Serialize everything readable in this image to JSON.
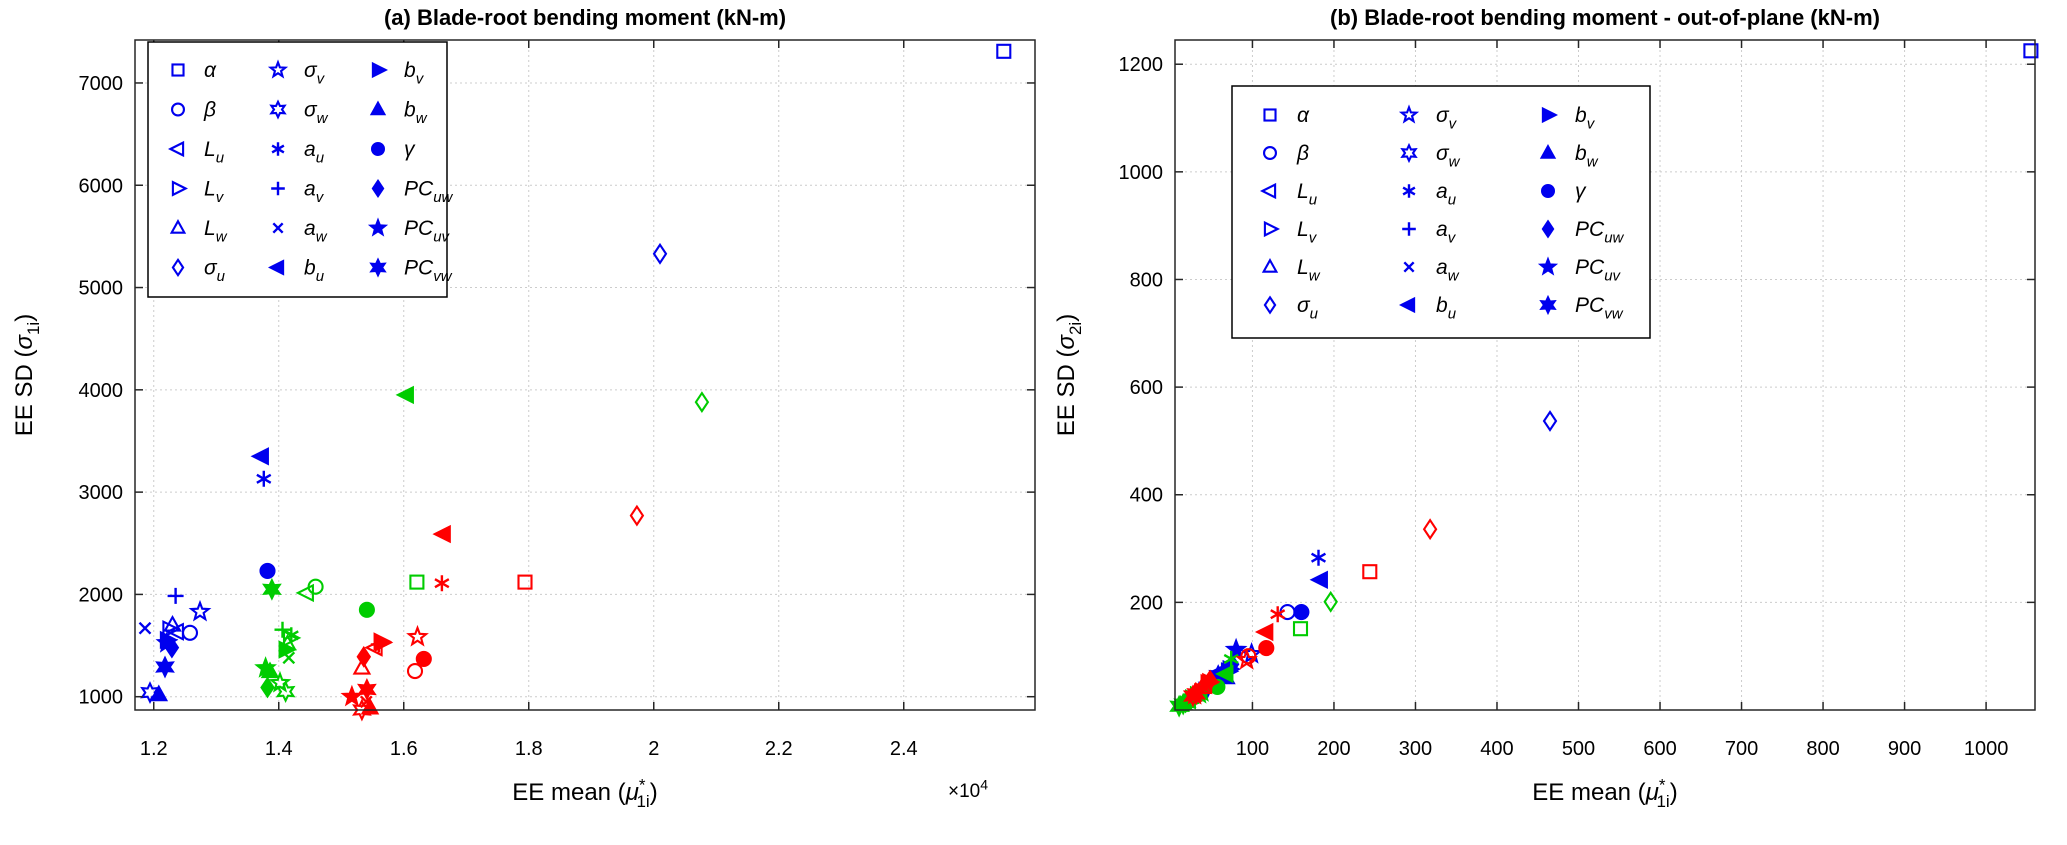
{
  "figure": {
    "background": "#ffffff"
  },
  "colors": {
    "series_blue": "#0000ee",
    "series_green": "#00cc00",
    "series_red": "#ff0000",
    "grid": "#cccccc",
    "axis": "#262626",
    "text": "#000000",
    "legend_border": "#000000",
    "legend_bg": "#ffffff"
  },
  "legend_entries": [
    {
      "id": "alpha",
      "base": "α",
      "sub": "",
      "marker": "square",
      "filled": false
    },
    {
      "id": "beta",
      "base": "β",
      "sub": "",
      "marker": "circle",
      "filled": false
    },
    {
      "id": "Lu",
      "base": "L",
      "sub": "u",
      "marker": "tri-left",
      "filled": false
    },
    {
      "id": "Lv",
      "base": "L",
      "sub": "v",
      "marker": "tri-right",
      "filled": false
    },
    {
      "id": "Lw",
      "base": "L",
      "sub": "w",
      "marker": "tri-up",
      "filled": false
    },
    {
      "id": "sigma_u",
      "base": "σ",
      "sub": "u",
      "marker": "diamond",
      "filled": false
    },
    {
      "id": "sigma_v",
      "base": "σ",
      "sub": "v",
      "marker": "star5",
      "filled": false
    },
    {
      "id": "sigma_w",
      "base": "σ",
      "sub": "w",
      "marker": "star6",
      "filled": false
    },
    {
      "id": "a_u",
      "base": "a",
      "sub": "u",
      "marker": "asterisk",
      "filled": false
    },
    {
      "id": "a_v",
      "base": "a",
      "sub": "v",
      "marker": "plus",
      "filled": false
    },
    {
      "id": "a_w",
      "base": "a",
      "sub": "w",
      "marker": "x",
      "filled": false
    },
    {
      "id": "b_u",
      "base": "b",
      "sub": "u",
      "marker": "tri-left",
      "filled": true
    },
    {
      "id": "b_v",
      "base": "b",
      "sub": "v",
      "marker": "tri-right",
      "filled": true
    },
    {
      "id": "b_w",
      "base": "b",
      "sub": "w",
      "marker": "tri-up",
      "filled": true
    },
    {
      "id": "gamma",
      "base": "γ",
      "sub": "",
      "marker": "circle",
      "filled": true
    },
    {
      "id": "PC_uw",
      "base": "PC",
      "sub": "uw",
      "marker": "diamond",
      "filled": true
    },
    {
      "id": "PC_uv",
      "base": "PC",
      "sub": "uv",
      "marker": "star5",
      "filled": true
    },
    {
      "id": "PC_vw",
      "base": "PC",
      "sub": "vw",
      "marker": "star6",
      "filled": true
    }
  ],
  "chart_data": [
    {
      "type": "scatter",
      "panel": "a",
      "title": "(a)  Blade-root bending moment (kN-m)",
      "xlabel_parts": [
        {
          "t": "EE mean ("
        },
        {
          "t": "μ",
          "i": 1
        },
        {
          "t": "*",
          "sup": 1
        },
        {
          "t": "1i",
          "sub": 1,
          "dx": -9
        },
        {
          "t": ")"
        }
      ],
      "ylabel_parts": [
        {
          "t": "EE SD ("
        },
        {
          "t": "σ",
          "i": 1
        },
        {
          "t": "1i",
          "sub": 1
        },
        {
          "t": ")"
        }
      ],
      "x_multiplier_parts": [
        {
          "t": "×10"
        },
        {
          "t": "4",
          "sup": 1
        }
      ],
      "xlim": [
        1.17,
        2.61
      ],
      "ylim": [
        870,
        7420
      ],
      "xticks": [
        1.2,
        1.4,
        1.6,
        1.8,
        2.0,
        2.2,
        2.4
      ],
      "xtick_labels": [
        "1.2",
        "1.4",
        "1.6",
        "1.8",
        "2",
        "2.2",
        "2.4"
      ],
      "yticks": [
        1000,
        2000,
        3000,
        4000,
        5000,
        6000,
        7000
      ],
      "ytick_labels": [
        "1000",
        "2000",
        "3000",
        "4000",
        "5000",
        "6000",
        "7000"
      ],
      "grid": true,
      "legend_position": "northwest",
      "series": [
        {
          "name": "blue",
          "color_key": "series_blue",
          "points": [
            [
              2.56,
              7310
            ],
            [
              1.258,
              1625
            ],
            [
              1.237,
              1635
            ],
            [
              1.225,
              1660
            ],
            [
              1.23,
              1700
            ],
            [
              2.01,
              5330
            ],
            [
              1.274,
              1830
            ],
            [
              1.194,
              1040
            ],
            [
              1.376,
              3130
            ],
            [
              1.235,
              1985
            ],
            [
              1.186,
              1670
            ],
            [
              1.373,
              3350
            ],
            [
              1.221,
              1555
            ],
            [
              1.208,
              1020
            ],
            [
              1.382,
              2230
            ],
            [
              1.229,
              1480
            ],
            [
              1.221,
              1525
            ],
            [
              1.218,
              1290
            ]
          ]
        },
        {
          "name": "green",
          "color_key": "series_green",
          "points": [
            [
              1.621,
              2120
            ],
            [
              1.459,
              2075
            ],
            [
              1.445,
              2015
            ],
            [
              1.418,
              1575
            ],
            [
              1.414,
              1515
            ],
            [
              2.077,
              3880
            ],
            [
              1.402,
              1135
            ],
            [
              1.411,
              1050
            ],
            [
              1.42,
              1600
            ],
            [
              1.406,
              1655
            ],
            [
              1.416,
              1380
            ],
            [
              1.605,
              3950
            ],
            [
              1.411,
              1460
            ],
            [
              1.386,
              1245
            ],
            [
              1.541,
              1850
            ],
            [
              1.382,
              1090
            ],
            [
              1.379,
              1280
            ],
            [
              1.389,
              2050
            ]
          ]
        },
        {
          "name": "red",
          "color_key": "series_red",
          "points": [
            [
              1.794,
              2120
            ],
            [
              1.618,
              1250
            ],
            [
              1.555,
              1480
            ],
            [
              1.563,
              1540
            ],
            [
              1.533,
              1280
            ],
            [
              1.973,
              2770
            ],
            [
              1.622,
              1585
            ],
            [
              1.533,
              870
            ],
            [
              1.661,
              2110
            ],
            [
              1.56,
              1510
            ],
            [
              1.54,
              950
            ],
            [
              1.664,
              2590
            ],
            [
              1.565,
              1530
            ],
            [
              1.546,
              890
            ],
            [
              1.632,
              1370
            ],
            [
              1.536,
              1390
            ],
            [
              1.517,
              1000
            ],
            [
              1.541,
              1070
            ]
          ]
        }
      ]
    },
    {
      "type": "scatter",
      "panel": "b",
      "title": "(b)  Blade-root bending moment - out-of-plane (kN-m)",
      "xlabel_parts": [
        {
          "t": "EE mean ("
        },
        {
          "t": "μ",
          "i": 1
        },
        {
          "t": "*",
          "sup": 1
        },
        {
          "t": "1i",
          "sub": 1,
          "dx": -9
        },
        {
          "t": ")"
        }
      ],
      "ylabel_parts": [
        {
          "t": "EE SD ("
        },
        {
          "t": "σ",
          "i": 1
        },
        {
          "t": "2i",
          "sub": 1
        },
        {
          "t": ")"
        }
      ],
      "xlim": [
        5,
        1060
      ],
      "ylim": [
        0,
        1245
      ],
      "xticks": [
        100,
        200,
        300,
        400,
        500,
        600,
        700,
        800,
        900,
        1000
      ],
      "xtick_labels": [
        "100",
        "200",
        "300",
        "400",
        "500",
        "600",
        "700",
        "800",
        "900",
        "1000"
      ],
      "yticks": [
        200,
        400,
        600,
        800,
        1000,
        1200
      ],
      "ytick_labels": [
        "200",
        "400",
        "600",
        "800",
        "1000",
        "1200"
      ],
      "grid": true,
      "legend_position": "northwest",
      "series": [
        {
          "name": "blue",
          "color_key": "series_blue",
          "points": [
            [
              1055,
              1225
            ],
            [
              143,
              182
            ],
            [
              60,
              70
            ],
            [
              72,
              76
            ],
            [
              63,
              66
            ],
            [
              465,
              537
            ],
            [
              99,
              104
            ],
            [
              45,
              42
            ],
            [
              181,
              283
            ],
            [
              55,
              58
            ],
            [
              50,
              52
            ],
            [
              184,
              242
            ],
            [
              70,
              72
            ],
            [
              68,
              60
            ],
            [
              160,
              182
            ],
            [
              75,
              85
            ],
            [
              80,
              112
            ],
            [
              58,
              64
            ]
          ]
        },
        {
          "name": "green",
          "color_key": "series_green",
          "points": [
            [
              159,
              151
            ],
            [
              30,
              25
            ],
            [
              22,
              18
            ],
            [
              26,
              22
            ],
            [
              20,
              16
            ],
            [
              196,
              201
            ],
            [
              35,
              30
            ],
            [
              15,
              11
            ],
            [
              74,
              95
            ],
            [
              28,
              24
            ],
            [
              24,
              20
            ],
            [
              68,
              67
            ],
            [
              32,
              28
            ],
            [
              12,
              9
            ],
            [
              57,
              43
            ],
            [
              18,
              14
            ],
            [
              38,
              33
            ],
            [
              10,
              7
            ]
          ]
        },
        {
          "name": "red",
          "color_key": "series_red",
          "points": [
            [
              244,
              257
            ],
            [
              95,
              100
            ],
            [
              42,
              46
            ],
            [
              45,
              50
            ],
            [
              38,
              42
            ],
            [
              318,
              336
            ],
            [
              93,
              93
            ],
            [
              27,
              26
            ],
            [
              131,
              178
            ],
            [
              40,
              45
            ],
            [
              36,
              40
            ],
            [
              117,
              145
            ],
            [
              47,
              52
            ],
            [
              30,
              32
            ],
            [
              117,
              115
            ],
            [
              48,
              55
            ],
            [
              29,
              28
            ],
            [
              31,
              30
            ]
          ]
        }
      ]
    }
  ]
}
